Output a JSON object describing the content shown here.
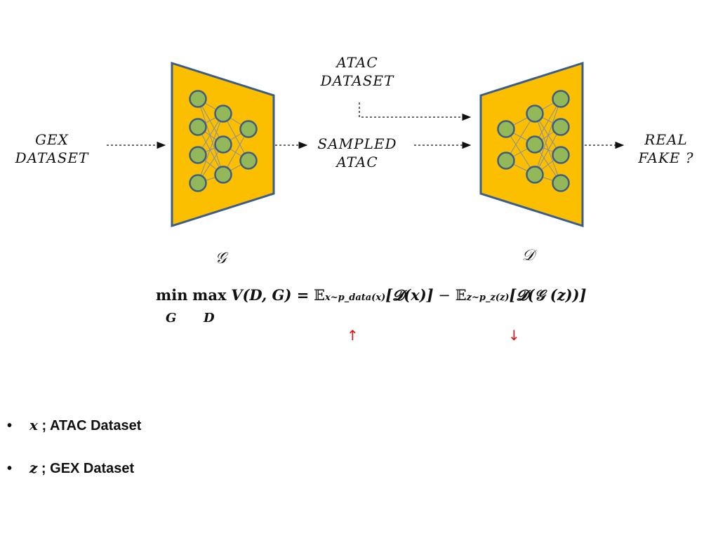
{
  "labels": {
    "gex_dataset": [
      "GEX",
      "DATASET"
    ],
    "atac_dataset": [
      "ATAC",
      "DATASET"
    ],
    "sampled_atac": [
      "SAMPLED",
      "ATAC"
    ],
    "real_fake": [
      "REAL",
      "FAKE ?"
    ],
    "generator_symbol": "𝒢",
    "discriminator_symbol": "𝒟"
  },
  "equation": {
    "min": "min",
    "max": "max",
    "min_under": "G",
    "max_under": "D",
    "lhs": "V(D, G) =",
    "term1_e": "𝔼",
    "term1_sub": "x~p_data(x)",
    "term1_body": "[𝓓(x)]",
    "minus": "−",
    "term2_e": "𝔼",
    "term2_sub": "z~p_z(z)",
    "term2_body": "[𝓓(𝒢 (z))]",
    "arrow_up": "↑",
    "arrow_down": "↓"
  },
  "bullets": [
    {
      "var": "x",
      "text": " ; ATAC Dataset"
    },
    {
      "var": "z",
      "text": " ; GEX Dataset"
    }
  ],
  "colors": {
    "block_fill": "#fcbf00",
    "block_stroke": "#3a5d8c",
    "node_fill": "#93b85a",
    "node_stroke": "#3e5e80",
    "edge": "#7f8fa8",
    "arrow_red": "#e01010"
  }
}
